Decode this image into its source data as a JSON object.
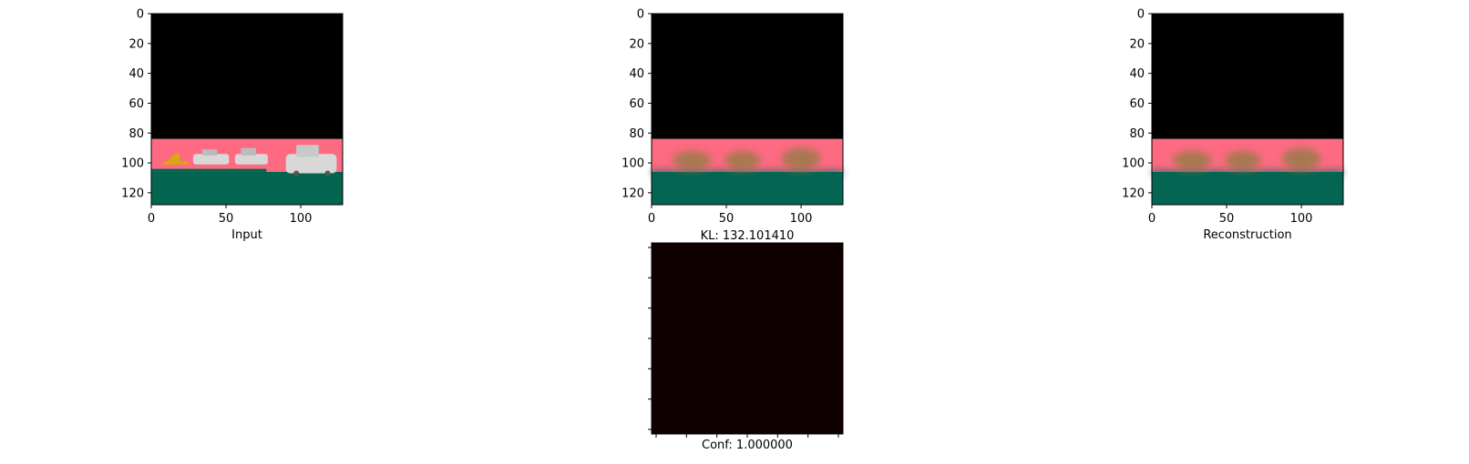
{
  "chart_data": [
    {
      "type": "image",
      "xlabel": "Input",
      "xlim": [
        0,
        128
      ],
      "ylim": [
        128,
        0
      ],
      "x_ticks": [
        0,
        50,
        100
      ],
      "y_ticks": [
        0,
        20,
        40,
        60,
        80,
        100,
        120
      ],
      "image_bands": {
        "sky_to": 84,
        "road_to": 106,
        "ground_to": 128
      },
      "colors": {
        "sky": "#000000",
        "road": "#fe6a82",
        "ground": "#036550",
        "car": "#d8d8d8",
        "truck": "#d9a80c"
      }
    },
    {
      "type": "image",
      "title": "KL: 132.101410",
      "xlim": [
        0,
        128
      ],
      "ylim": [
        128,
        0
      ],
      "x_ticks": [
        0,
        50,
        100
      ],
      "y_ticks": [
        0,
        20,
        40,
        60,
        80,
        100,
        120
      ],
      "image_bands": {
        "sky_to": 84,
        "road_to": 106,
        "ground_to": 128
      },
      "colors": {
        "sky": "#000000",
        "road": "#fe6a82",
        "ground": "#046652",
        "blur": "#9a7a4a"
      }
    },
    {
      "type": "image",
      "xlabel": "Reconstruction",
      "xlim": [
        0,
        128
      ],
      "ylim": [
        128,
        0
      ],
      "x_ticks": [
        0,
        50,
        100
      ],
      "y_ticks": [
        0,
        20,
        40,
        60,
        80,
        100,
        120
      ],
      "image_bands": {
        "sky_to": 84,
        "road_to": 106,
        "ground_to": 128
      },
      "colors": {
        "sky": "#000000",
        "road": "#fe6a82",
        "ground": "#046652",
        "blur": "#9a7a4a"
      }
    },
    {
      "type": "heatmap",
      "xlabel": "Conf: 1.000000",
      "values": [
        [
          1.0
        ]
      ],
      "colors": {
        "fill": "#0f0000"
      }
    }
  ]
}
